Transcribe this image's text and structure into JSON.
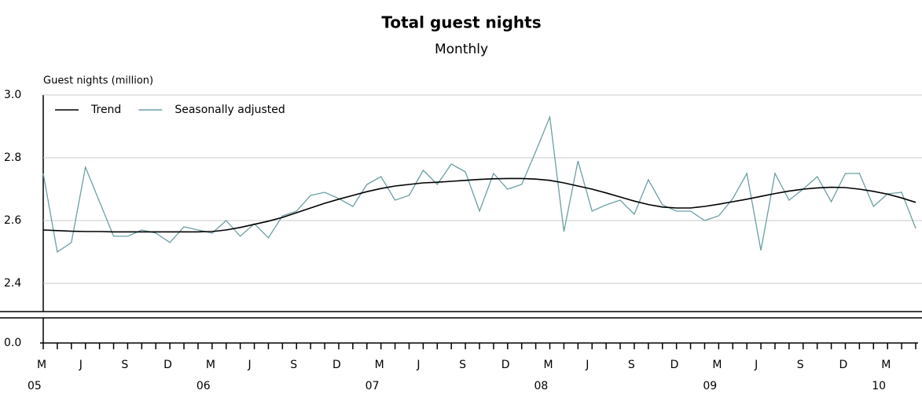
{
  "chart_data": {
    "type": "line",
    "title": "Total guest nights",
    "subtitle": "Monthly",
    "y_label": "Guest nights (million)",
    "categories": [
      "M",
      null,
      null,
      "J",
      null,
      null,
      "S",
      null,
      null,
      "D",
      null,
      null,
      "M",
      null,
      null,
      "J",
      null,
      null,
      "S",
      null,
      null,
      "D",
      null,
      null,
      "M",
      null,
      null,
      "J",
      null,
      null,
      "S",
      null,
      null,
      "D",
      null,
      null,
      "M",
      null,
      null,
      "J",
      null,
      null,
      "S",
      null,
      null,
      "D",
      null,
      null,
      "M",
      null,
      null,
      "J",
      null,
      null,
      "S",
      null,
      null,
      "D",
      null,
      null,
      "M",
      null,
      null
    ],
    "years": [
      "05",
      null,
      null,
      null,
      null,
      null,
      null,
      null,
      null,
      null,
      null,
      null,
      "06",
      null,
      null,
      null,
      null,
      null,
      null,
      null,
      null,
      null,
      null,
      null,
      "07",
      null,
      null,
      null,
      null,
      null,
      null,
      null,
      null,
      null,
      null,
      null,
      "08",
      null,
      null,
      null,
      null,
      null,
      null,
      null,
      null,
      null,
      null,
      null,
      "09",
      null,
      null,
      null,
      null,
      null,
      null,
      null,
      null,
      null,
      null,
      null,
      "10",
      null,
      null
    ],
    "series": [
      {
        "name": "Trend",
        "color": "#000000",
        "values": [
          2.57,
          2.568,
          2.566,
          2.565,
          2.565,
          2.564,
          2.564,
          2.564,
          2.564,
          2.564,
          2.564,
          2.564,
          2.565,
          2.57,
          2.578,
          2.588,
          2.598,
          2.61,
          2.625,
          2.64,
          2.655,
          2.668,
          2.68,
          2.692,
          2.702,
          2.71,
          2.715,
          2.72,
          2.722,
          2.725,
          2.728,
          2.731,
          2.733,
          2.734,
          2.734,
          2.732,
          2.728,
          2.72,
          2.71,
          2.7,
          2.688,
          2.675,
          2.662,
          2.651,
          2.643,
          2.64,
          2.64,
          2.645,
          2.652,
          2.66,
          2.668,
          2.677,
          2.686,
          2.694,
          2.7,
          2.704,
          2.706,
          2.705,
          2.7,
          2.693,
          2.684,
          2.672,
          2.658
        ]
      },
      {
        "name": "Seasonally adjusted",
        "color": "#6a9fa3",
        "values": [
          2.75,
          2.5,
          2.53,
          2.77,
          2.66,
          2.55,
          2.55,
          2.57,
          2.56,
          2.53,
          2.58,
          2.57,
          2.56,
          2.6,
          2.55,
          2.59,
          2.545,
          2.615,
          2.63,
          2.68,
          2.69,
          2.67,
          2.645,
          2.715,
          2.74,
          2.665,
          2.68,
          2.76,
          2.715,
          2.78,
          2.755,
          2.63,
          2.75,
          2.7,
          2.715,
          2.82,
          2.93,
          2.565,
          2.79,
          2.63,
          2.65,
          2.665,
          2.62,
          2.73,
          2.65,
          2.63,
          2.63,
          2.6,
          2.615,
          2.67,
          2.75,
          2.505,
          2.75,
          2.665,
          2.7,
          2.74,
          2.66,
          2.75,
          2.75,
          2.645,
          2.685,
          2.69,
          2.575
        ]
      }
    ],
    "ylim": [
      2.3,
      3.0
    ],
    "yticks": [
      {
        "value": 0,
        "label": "0.0"
      },
      2.4,
      2.6,
      2.8,
      {
        "value": 3,
        "label": "3.0"
      }
    ],
    "grid": true,
    "legend": "upper left"
  }
}
